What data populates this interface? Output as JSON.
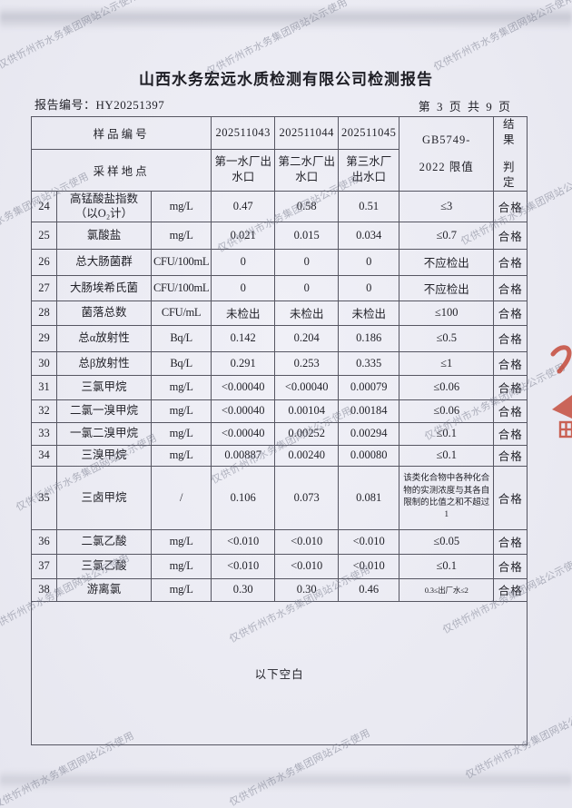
{
  "document": {
    "title": "山西水务宏远水质检测有限公司检测报告",
    "report_number_label": "报告编号：",
    "report_number": "HY20251397",
    "page_info": "第 3 页 共 9 页"
  },
  "table": {
    "header": {
      "sample_id_label": "样品编号",
      "sampling_location_label": "采样地点",
      "sample_ids": [
        "202511043",
        "202511044",
        "202511045"
      ],
      "locations": [
        "第一水厂出水口",
        "第二水厂出水口",
        "第三水厂出水口"
      ],
      "standard_line1": "GB5749-",
      "standard_line2": "2022 限值",
      "result_line1": "结果",
      "result_line2": "判定"
    },
    "rows": [
      {
        "no": "24",
        "name": "高锰酸盐指数（以O₂计）",
        "unit": "mg/L",
        "values": [
          "0.47",
          "0.58",
          "0.51"
        ],
        "limit": "≤3",
        "result": "合格"
      },
      {
        "no": "25",
        "name": "氯酸盐",
        "unit": "mg/L",
        "values": [
          "0.021",
          "0.015",
          "0.034"
        ],
        "limit": "≤0.7",
        "result": "合格"
      },
      {
        "no": "26",
        "name": "总大肠菌群",
        "unit": "CFU/100mL",
        "values": [
          "0",
          "0",
          "0"
        ],
        "limit": "不应检出",
        "result": "合格"
      },
      {
        "no": "27",
        "name": "大肠埃希氏菌",
        "unit": "CFU/100mL",
        "values": [
          "0",
          "0",
          "0"
        ],
        "limit": "不应检出",
        "result": "合格"
      },
      {
        "no": "28",
        "name": "菌落总数",
        "unit": "CFU/mL",
        "values": [
          "未检出",
          "未检出",
          "未检出"
        ],
        "limit": "≤100",
        "result": "合格"
      },
      {
        "no": "29",
        "name": "总α放射性",
        "unit": "Bq/L",
        "values": [
          "0.142",
          "0.204",
          "0.186"
        ],
        "limit": "≤0.5",
        "result": "合格"
      },
      {
        "no": "30",
        "name": "总β放射性",
        "unit": "Bq/L",
        "values": [
          "0.291",
          "0.253",
          "0.335"
        ],
        "limit": "≤1",
        "result": "合格"
      },
      {
        "no": "31",
        "name": "三氯甲烷",
        "unit": "mg/L",
        "values": [
          "<0.00040",
          "<0.00040",
          "0.00079"
        ],
        "limit": "≤0.06",
        "result": "合格"
      },
      {
        "no": "32",
        "name": "二氯一溴甲烷",
        "unit": "mg/L",
        "values": [
          "<0.00040",
          "0.00104",
          "0.00184"
        ],
        "limit": "≤0.06",
        "result": "合格"
      },
      {
        "no": "33",
        "name": "一氯二溴甲烷",
        "unit": "mg/L",
        "values": [
          "<0.00040",
          "0.00252",
          "0.00294"
        ],
        "limit": "≤0.1",
        "result": "合格"
      },
      {
        "no": "34",
        "name": "三溴甲烷",
        "unit": "mg/L",
        "values": [
          "0.00887",
          "0.00240",
          "0.00080"
        ],
        "limit": "≤0.1",
        "result": "合格"
      },
      {
        "no": "35",
        "name": "三卤甲烷",
        "unit": "/",
        "values": [
          "0.106",
          "0.073",
          "0.081"
        ],
        "limit": "该类化合物中各种化合物的实测浓度与其各自限制的比值之和不超过1",
        "result": "合格"
      },
      {
        "no": "36",
        "name": "二氯乙酸",
        "unit": "mg/L",
        "values": [
          "<0.010",
          "<0.010",
          "<0.010"
        ],
        "limit": "≤0.05",
        "result": "合格"
      },
      {
        "no": "37",
        "name": "三氯乙酸",
        "unit": "mg/L",
        "values": [
          "<0.010",
          "<0.010",
          "<0.010"
        ],
        "limit": "≤0.1",
        "result": "合格"
      },
      {
        "no": "38",
        "name": "游离氯",
        "unit": "mg/L",
        "values": [
          "0.30",
          "0.30",
          "0.46"
        ],
        "limit": "0.3≤出厂水≤2",
        "result": "合格"
      }
    ],
    "footer_note": "以下空白"
  },
  "watermark": {
    "text": "仅供忻州市水务集团网站公示使用"
  },
  "colors": {
    "paper": "#eaeaf2",
    "ink": "#23232a",
    "table_line": "#565662",
    "watermark_grey": "#7a7d8e",
    "stamp_red": "#c2402e"
  }
}
